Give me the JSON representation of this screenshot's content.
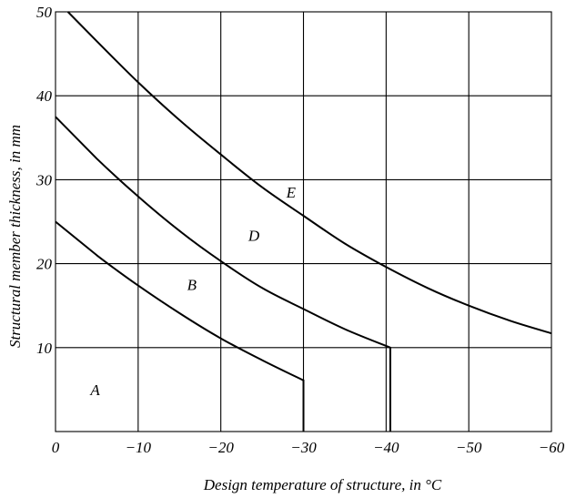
{
  "chart_data": {
    "type": "line",
    "xlabel": "Design temperature of structure, in °C",
    "ylabel": "Structural member thickness, in mm",
    "xlim": [
      0,
      -60
    ],
    "ylim": [
      0,
      50
    ],
    "grid": true,
    "x_ticks": [
      {
        "value": 0,
        "label": "0"
      },
      {
        "value": -10,
        "label": "−10"
      },
      {
        "value": -20,
        "label": "−20"
      },
      {
        "value": -30,
        "label": "−30"
      },
      {
        "value": -40,
        "label": "−40"
      },
      {
        "value": -50,
        "label": "−50"
      },
      {
        "value": -60,
        "label": "−60"
      }
    ],
    "y_ticks": [
      {
        "value": 10,
        "label": "10"
      },
      {
        "value": 20,
        "label": "20"
      },
      {
        "value": 30,
        "label": "30"
      },
      {
        "value": 40,
        "label": "40"
      },
      {
        "value": 50,
        "label": "50"
      }
    ],
    "series": [
      {
        "x": [
          0,
          -5,
          -10,
          -15,
          -20,
          -25,
          -30,
          -30
        ],
        "y": [
          25,
          21,
          17.4,
          14.1,
          11.1,
          8.5,
          6.1,
          0
        ]
      },
      {
        "x": [
          0,
          -5,
          -10,
          -15,
          -20,
          -25,
          -30,
          -35,
          -40.5,
          -40.5
        ],
        "y": [
          37.5,
          32.5,
          28,
          23.9,
          20.3,
          17.1,
          14.6,
          12.2,
          10,
          0
        ]
      },
      {
        "x": [
          -1.5,
          -5,
          -10,
          -15,
          -20,
          -25,
          -30,
          -35,
          -40,
          -45,
          -50,
          -55,
          -60
        ],
        "y": [
          50,
          46.5,
          41.6,
          37.1,
          33,
          29.1,
          25.7,
          22.4,
          19.6,
          17.1,
          15,
          13.2,
          11.7
        ]
      }
    ],
    "annotations": [
      {
        "text": "A",
        "x": -4.8,
        "y": 5
      },
      {
        "text": "B",
        "x": -16.5,
        "y": 17.5
      },
      {
        "text": "D",
        "x": -24,
        "y": 23.4
      },
      {
        "text": "E",
        "x": -28.5,
        "y": 28.5
      }
    ]
  }
}
